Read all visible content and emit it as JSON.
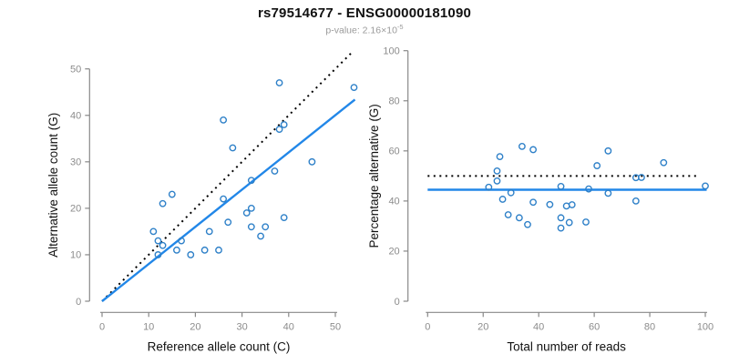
{
  "header": {
    "title": "rs79514677 - ENSG00000181090",
    "p_label": "p-value: 2.16×10",
    "p_exponent": "-5"
  },
  "colors": {
    "accent_line": "#2287E8",
    "point_stroke": "#2E80C8",
    "reference_line": "#000000",
    "axis": "#888888",
    "tick_label": "#8c8c8c"
  },
  "chart_data": [
    {
      "type": "scatter",
      "name": "allele-counts",
      "xlabel": "Reference allele count (C)",
      "ylabel": "Alternative allele count (G)",
      "xticks": [
        0,
        10,
        20,
        30,
        40,
        50
      ],
      "yticks": [
        0,
        10,
        20,
        30,
        40,
        50
      ],
      "xlim": [
        -2,
        56
      ],
      "ylim": [
        -2,
        55
      ],
      "grid": false,
      "legend": "none",
      "points": [
        [
          38,
          47
        ],
        [
          54,
          46
        ],
        [
          26,
          39
        ],
        [
          39,
          38
        ],
        [
          38,
          37
        ],
        [
          28,
          33
        ],
        [
          45,
          30
        ],
        [
          37,
          28
        ],
        [
          32,
          26
        ],
        [
          15,
          23
        ],
        [
          13,
          21
        ],
        [
          26,
          22
        ],
        [
          32,
          20
        ],
        [
          31,
          19
        ],
        [
          39,
          18
        ],
        [
          27,
          17
        ],
        [
          32,
          16
        ],
        [
          35,
          16
        ],
        [
          11,
          15
        ],
        [
          23,
          15
        ],
        [
          34,
          14
        ],
        [
          17,
          13
        ],
        [
          12,
          13
        ],
        [
          13,
          12
        ],
        [
          16,
          11
        ],
        [
          22,
          11
        ],
        [
          25,
          11
        ],
        [
          19,
          10
        ],
        [
          12,
          10
        ]
      ],
      "lines": [
        {
          "name": "identity-line",
          "style": "dotted",
          "x1": 0,
          "y1": 0,
          "x2": 53.5,
          "y2": 53.5
        },
        {
          "name": "fit-line",
          "style": "solid",
          "x1": 0,
          "y1": 0,
          "x2": 54.2,
          "y2": 43.4
        }
      ]
    },
    {
      "type": "scatter",
      "name": "percentage-vs-reads",
      "xlabel": "Total number of reads",
      "ylabel": "Percentage alternative (G)",
      "xticks": [
        0,
        20,
        40,
        60,
        80,
        100
      ],
      "yticks": [
        0,
        20,
        40,
        60,
        80,
        100
      ],
      "xlim": [
        -3,
        104
      ],
      "ylim": [
        -2,
        102
      ],
      "grid": false,
      "legend": "none",
      "points": [
        [
          85,
          55.3
        ],
        [
          100,
          46.0
        ],
        [
          65,
          60.0
        ],
        [
          77,
          49.4
        ],
        [
          75,
          49.3
        ],
        [
          61,
          54.1
        ],
        [
          75,
          40.0
        ],
        [
          65,
          43.1
        ],
        [
          58,
          44.8
        ],
        [
          38,
          60.5
        ],
        [
          34,
          61.8
        ],
        [
          48,
          45.8
        ],
        [
          52,
          38.5
        ],
        [
          50,
          38.0
        ],
        [
          57,
          31.6
        ],
        [
          44,
          38.6
        ],
        [
          48,
          33.3
        ],
        [
          51,
          31.4
        ],
        [
          26,
          57.7
        ],
        [
          38,
          39.5
        ],
        [
          48,
          29.2
        ],
        [
          30,
          43.3
        ],
        [
          25,
          52.0
        ],
        [
          25,
          48.0
        ],
        [
          27,
          40.7
        ],
        [
          33,
          33.3
        ],
        [
          36,
          30.6
        ],
        [
          29,
          34.5
        ],
        [
          22,
          45.5
        ]
      ],
      "lines": [
        {
          "name": "reference-50pct-line",
          "style": "dotted",
          "x1": 0,
          "y1": 50,
          "x2": 98,
          "y2": 50
        },
        {
          "name": "mean-line",
          "style": "solid",
          "x1": 0,
          "y1": 44.5,
          "x2": 100.5,
          "y2": 44.5
        }
      ]
    }
  ]
}
